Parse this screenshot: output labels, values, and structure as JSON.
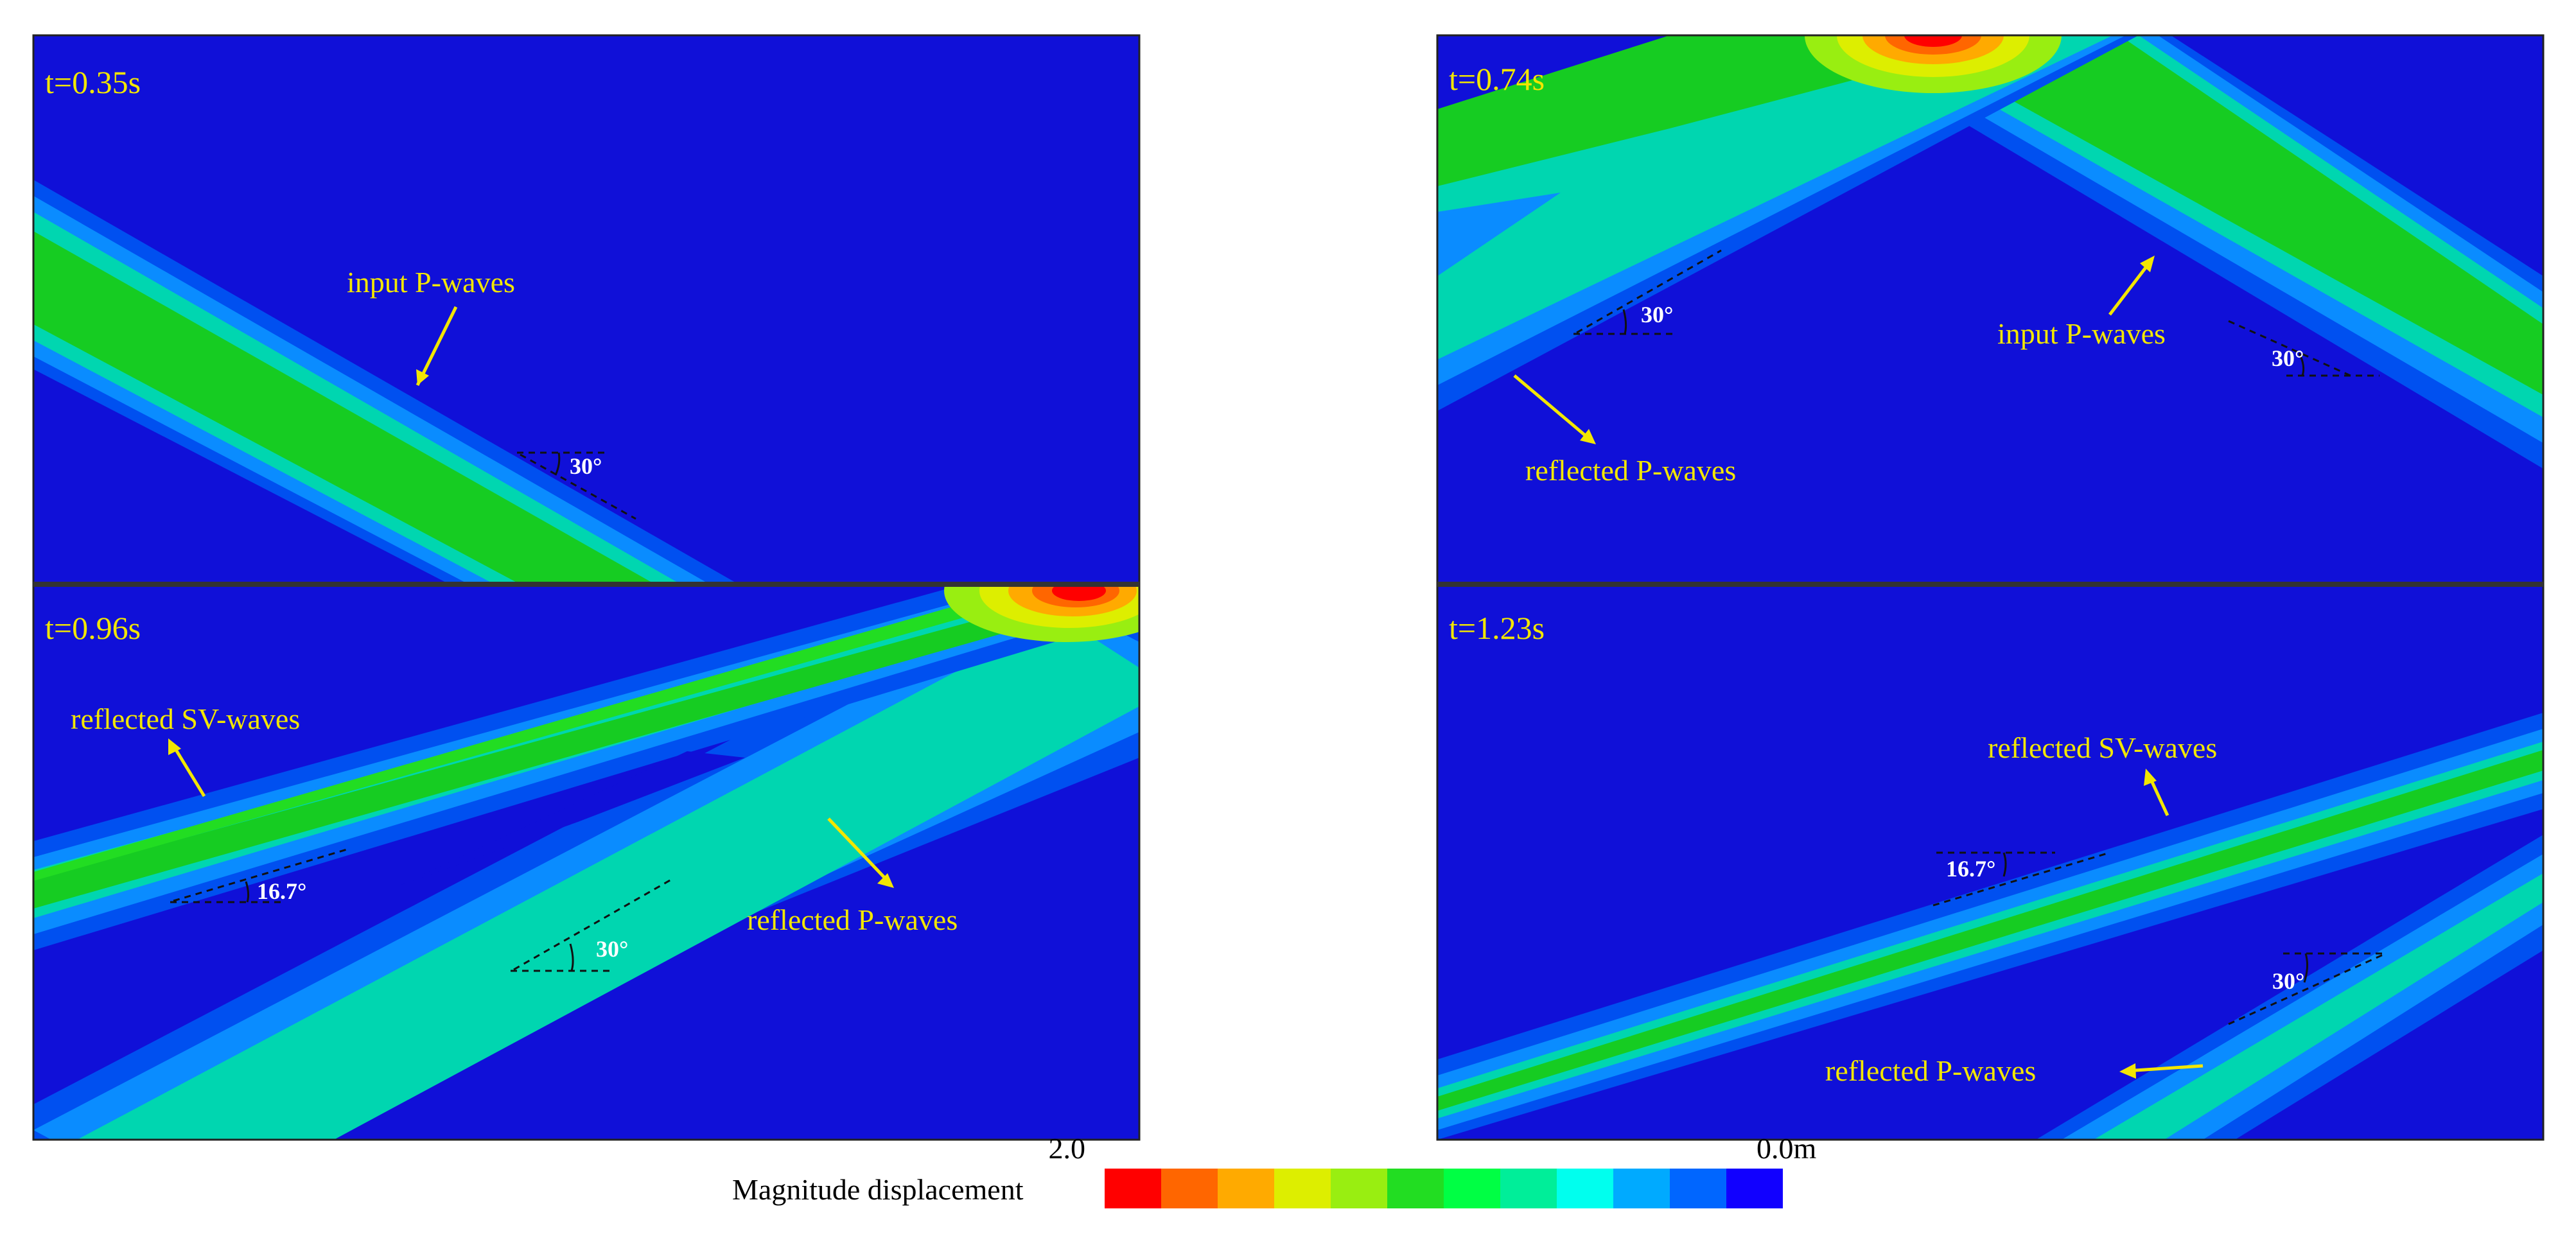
{
  "panels": {
    "top_left": {
      "time": "t=0.35s",
      "labels": [
        "input P-waves"
      ],
      "angles": [
        "30°"
      ]
    },
    "top_right": {
      "time": "t=0.74s",
      "labels": [
        "input P-waves",
        "reflected P-waves"
      ],
      "angles": [
        "30°",
        "30°"
      ]
    },
    "bottom_left": {
      "time": "t=0.96s",
      "labels": [
        "reflected SV-waves",
        "reflected P-waves"
      ],
      "angles": [
        "16.7°",
        "30°"
      ]
    },
    "bottom_right": {
      "time": "t=1.23s",
      "labels": [
        "reflected SV-waves",
        "reflected P-waves"
      ],
      "angles": [
        "16.7°",
        "30°"
      ]
    }
  },
  "legend": {
    "title": "Magnitude displacement",
    "max_label": "2.0",
    "min_label": "0.0m",
    "colors": [
      "#ff0000",
      "#ff6600",
      "#ffaa00",
      "#ddee00",
      "#99ee11",
      "#22dd22",
      "#00ff44",
      "#00ee99",
      "#00ffee",
      "#00aaff",
      "#0066ff",
      "#1100ff"
    ]
  },
  "colors": {
    "background_blue": "#1010d8",
    "band_outer": "#0050f0",
    "band_mid": "#0a8cff",
    "band_inner": "#00d6b0",
    "band_core": "#16cc22",
    "label_yellow": "#f2e600"
  }
}
